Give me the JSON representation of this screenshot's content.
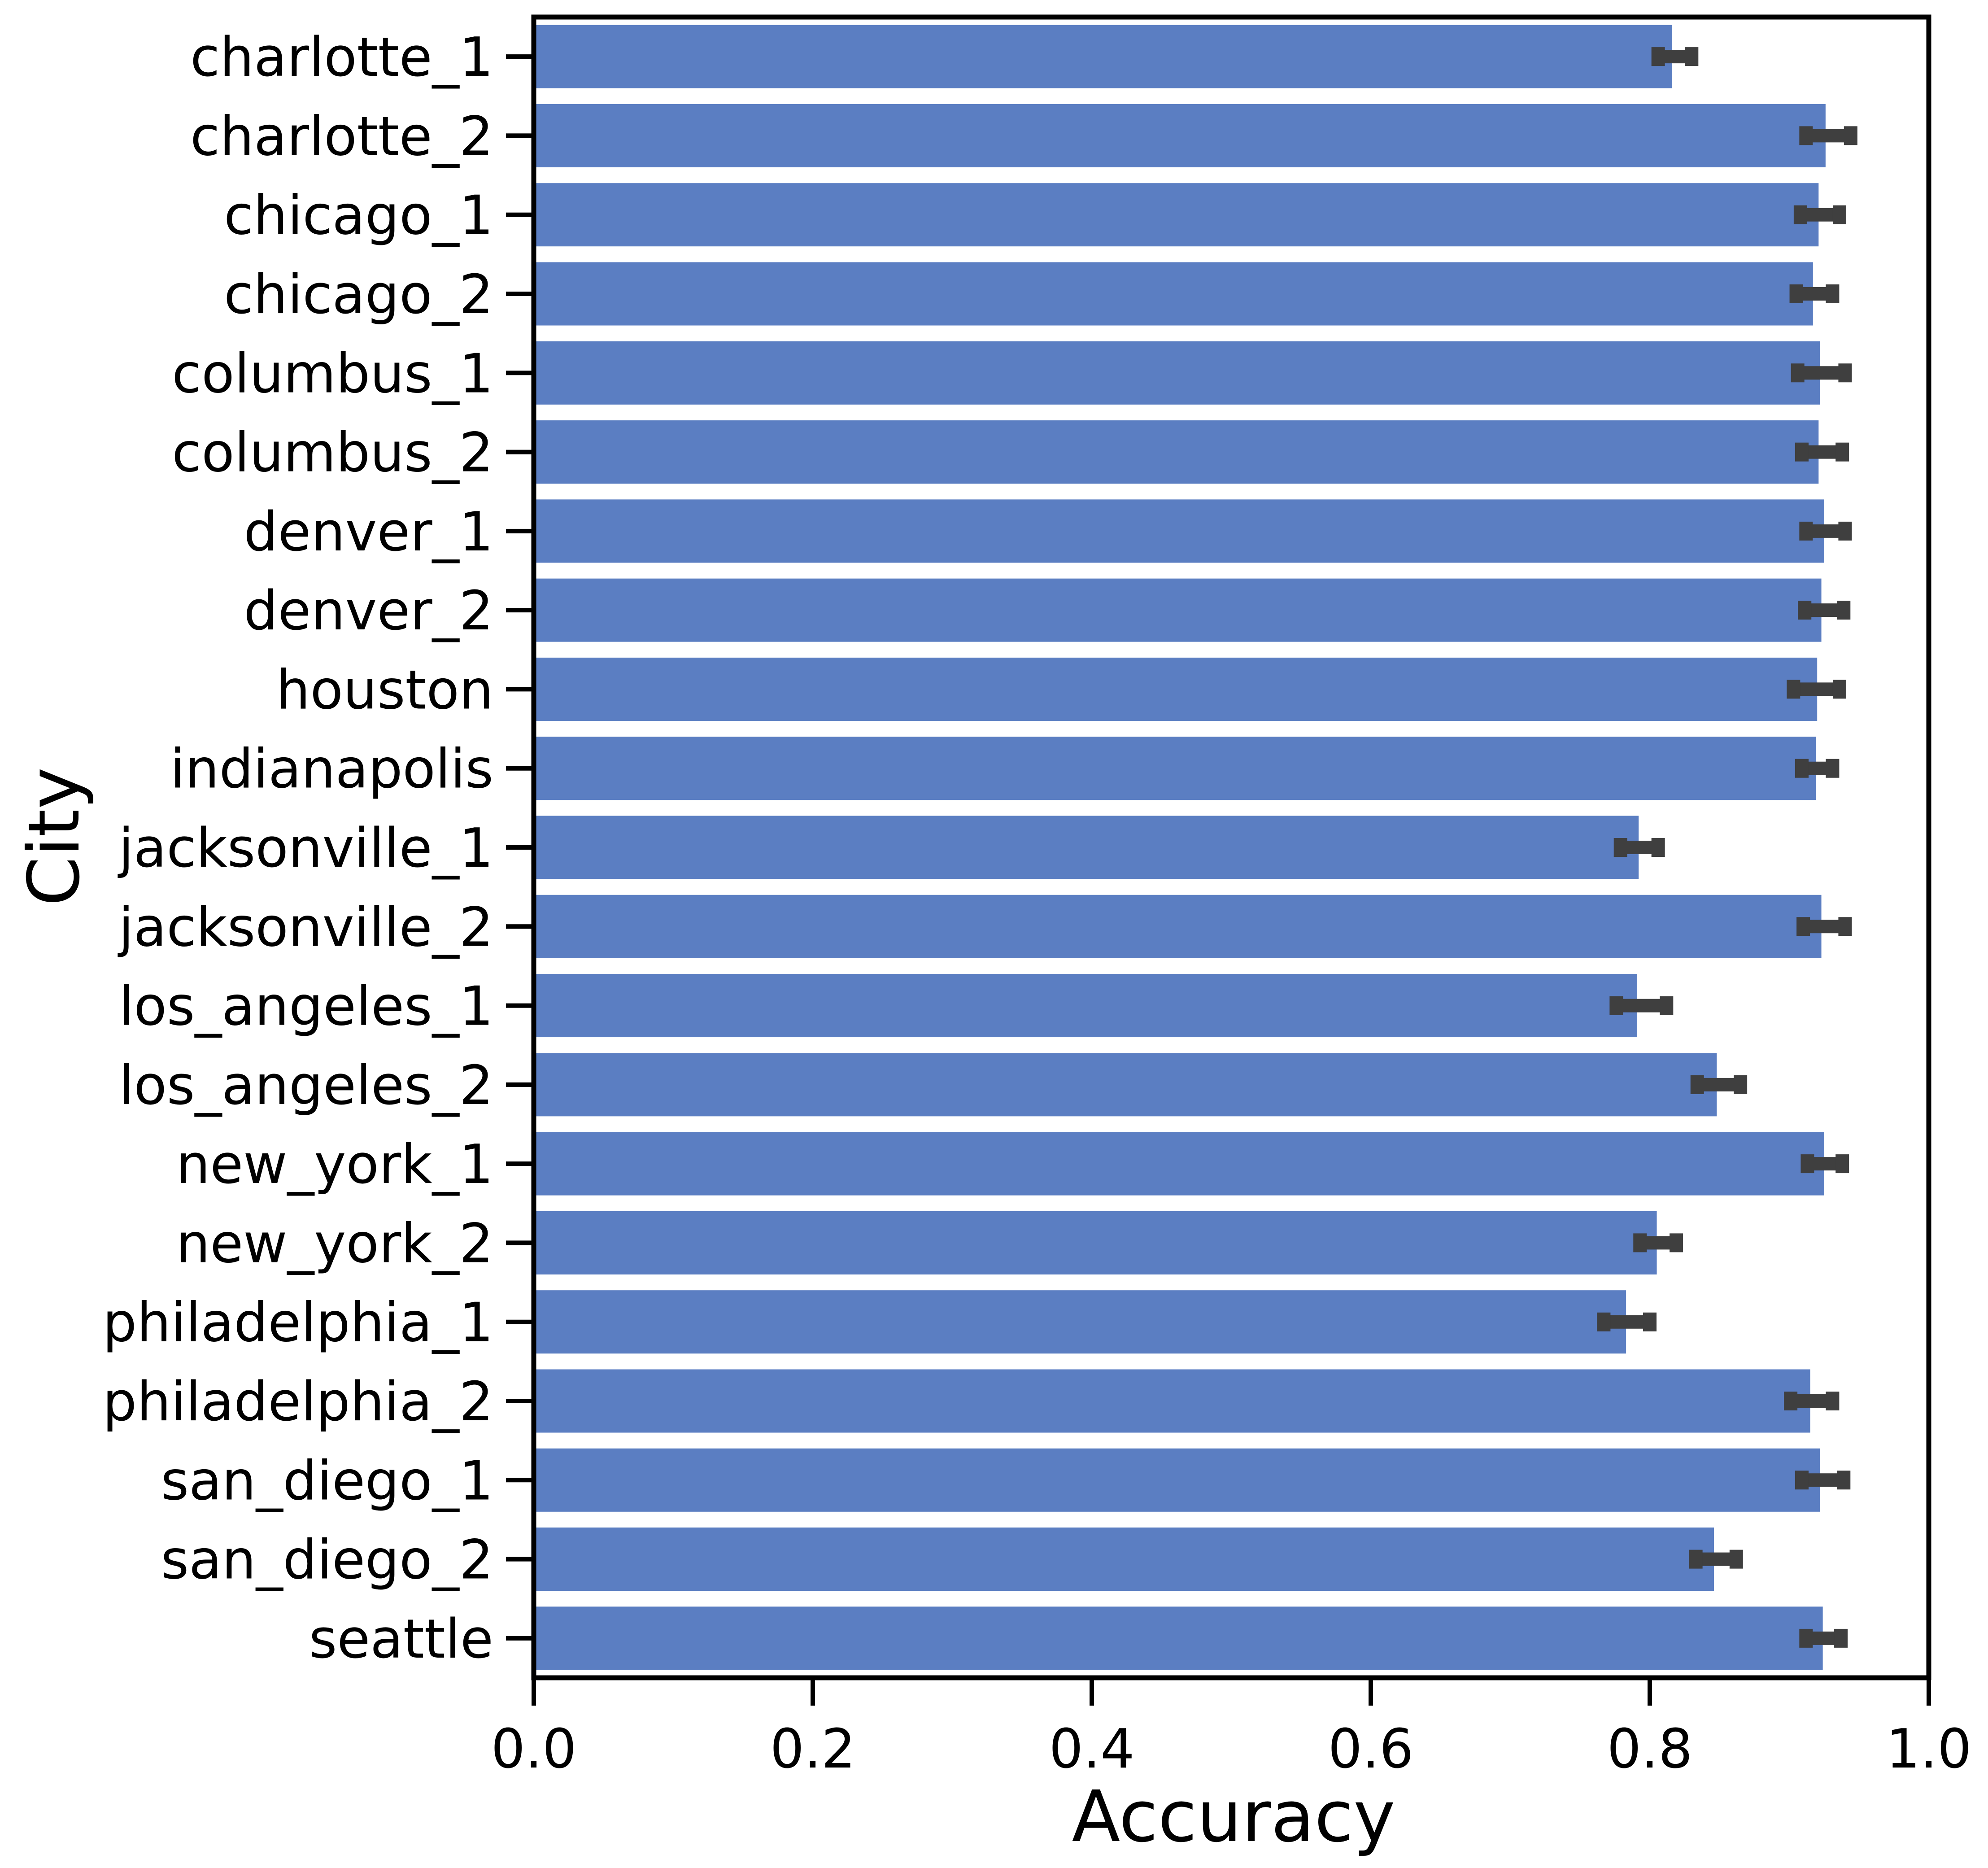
{
  "chart_data": {
    "type": "bar",
    "orientation": "horizontal",
    "xlabel": "Accuracy",
    "ylabel": "City",
    "xlim": [
      0.0,
      1.0
    ],
    "xticks": [
      "0.0",
      "0.2",
      "0.4",
      "0.6",
      "0.8",
      "1.0"
    ],
    "grid": false,
    "legend": "none",
    "bar_color": "#5b7ec2",
    "error_bar_color": "#3f3f3f",
    "categories": [
      "charlotte_1",
      "charlotte_2",
      "chicago_1",
      "chicago_2",
      "columbus_1",
      "columbus_2",
      "denver_1",
      "denver_2",
      "houston",
      "indianapolis",
      "jacksonville_1",
      "jacksonville_2",
      "los_angeles_1",
      "los_angeles_2",
      "new_york_1",
      "new_york_2",
      "philadelphia_1",
      "philadelphia_2",
      "san_diego_1",
      "san_diego_2",
      "seattle"
    ],
    "values": [
      0.816,
      0.926,
      0.921,
      0.917,
      0.922,
      0.921,
      0.925,
      0.923,
      0.92,
      0.919,
      0.792,
      0.923,
      0.791,
      0.848,
      0.925,
      0.805,
      0.783,
      0.915,
      0.922,
      0.846,
      0.924
    ],
    "errors": [
      [
        0.806,
        0.83
      ],
      [
        0.912,
        0.944
      ],
      [
        0.908,
        0.936
      ],
      [
        0.905,
        0.931
      ],
      [
        0.906,
        0.94
      ],
      [
        0.909,
        0.938
      ],
      [
        0.912,
        0.94
      ],
      [
        0.911,
        0.939
      ],
      [
        0.903,
        0.936
      ],
      [
        0.909,
        0.931
      ],
      [
        0.779,
        0.806
      ],
      [
        0.91,
        0.94
      ],
      [
        0.776,
        0.812
      ],
      [
        0.834,
        0.865
      ],
      [
        0.913,
        0.938
      ],
      [
        0.793,
        0.819
      ],
      [
        0.767,
        0.8
      ],
      [
        0.901,
        0.931
      ],
      [
        0.909,
        0.939
      ],
      [
        0.833,
        0.862
      ],
      [
        0.912,
        0.937
      ]
    ]
  }
}
